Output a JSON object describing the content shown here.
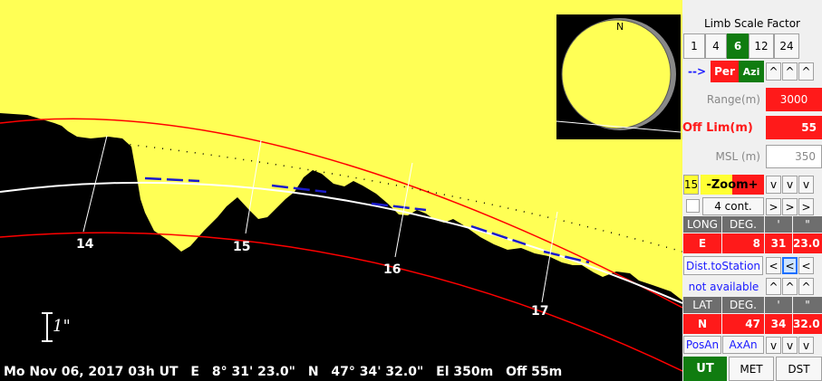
{
  "view": {
    "track_labels": [
      "14",
      "15",
      "16",
      "17"
    ],
    "inset_north_label": "N",
    "scale_label": "1\"",
    "status": {
      "date": "Mo Nov 06, 2017 03h UT",
      "lon_dir": "E",
      "lon": "8° 31' 23.0\"",
      "lat_dir": "N",
      "lat": "47° 34' 32.0\"",
      "elev": "El 350m",
      "off": "Off 55m"
    },
    "colors": {
      "sky": "#ffff55",
      "terrain": "#000000",
      "limb_line": "#ff0000",
      "track": "#1a1acc"
    }
  },
  "panel": {
    "title": "Limb Scale Factor",
    "scale_factors": [
      "1",
      "4",
      "6",
      "12",
      "24"
    ],
    "selected_scale": "6",
    "arrow_label": "-->",
    "per_label": "Per",
    "azi_label": "Azi",
    "up_label": "^",
    "down_label": "v",
    "right_label": ">",
    "left_label": "<",
    "range_label": "Range(m)",
    "range_value": "3000",
    "offlim_label": "Off Lim(m)",
    "offlim_value": "55",
    "msl_label": "MSL (m)",
    "msl_value": "350",
    "zoom_value": "15",
    "zoom_label": "-Zoom+",
    "cont_label": "4 cont.",
    "long_label": "LONG",
    "deg_label": "DEG.",
    "min_label": "'",
    "sec_label": "\"",
    "long_dir": "E",
    "long_deg": "8",
    "long_min": "31",
    "long_sec": "23.0",
    "dist_label": "Dist.toStation",
    "not_available": "not available",
    "lat_label": "LAT",
    "lat_dir": "N",
    "lat_deg": "47",
    "lat_min": "34",
    "lat_sec": "32.0",
    "posan_label": "PosAn",
    "axan_label": "AxAn",
    "time_modes": [
      "UT",
      "MET",
      "DST"
    ],
    "selected_time_mode": "UT"
  }
}
